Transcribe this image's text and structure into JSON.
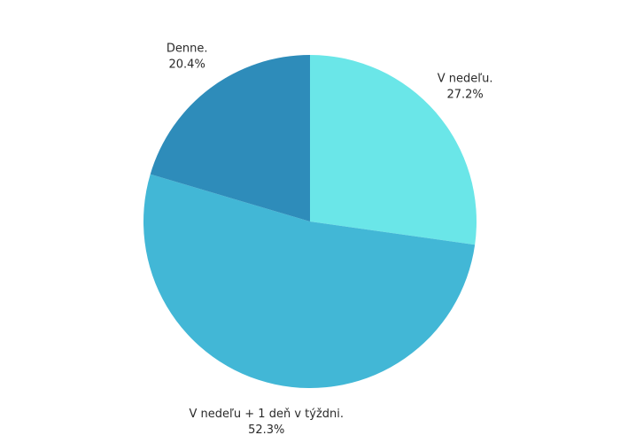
{
  "chart_data": {
    "type": "pie",
    "categories": [
      "V nedeľu.",
      "V nedeľu + 1 deň v týždni.",
      "Denne."
    ],
    "values": [
      27.2,
      52.3,
      20.4
    ],
    "value_labels": [
      "27.2%",
      "52.3%",
      "20.4%"
    ],
    "colors": [
      "#6ae6e8",
      "#42b7d6",
      "#2e8cba"
    ]
  }
}
